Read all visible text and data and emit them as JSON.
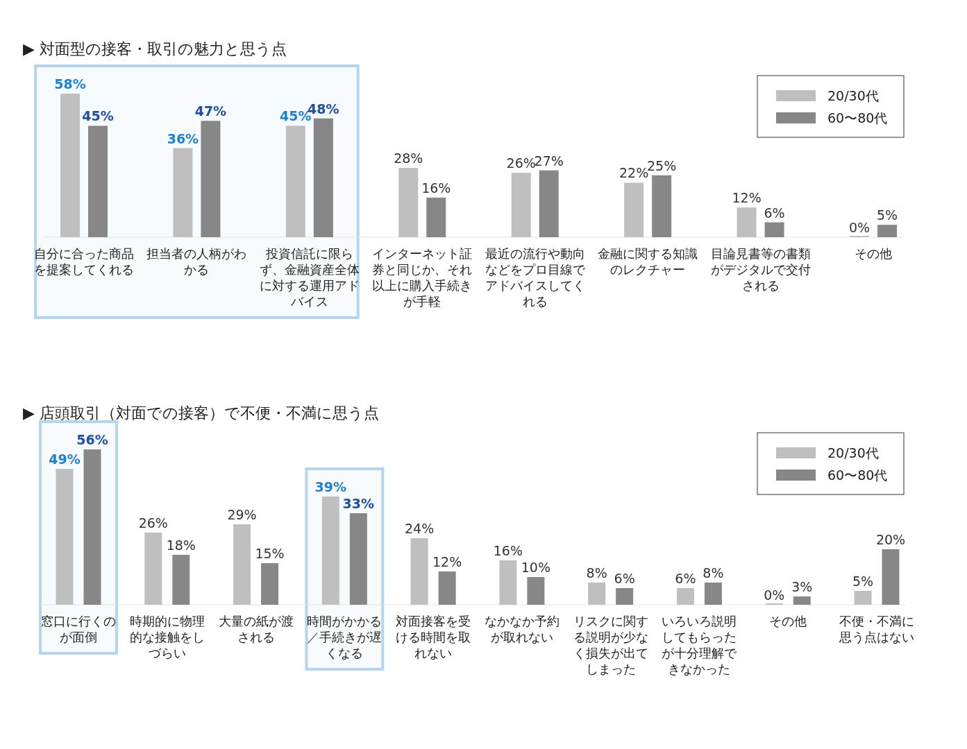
{
  "chart_data": [
    {
      "type": "bar",
      "title": "▶ 対面型の接客・取引の魅力と思う点",
      "categories": [
        "自分に合った商品を提案してくれる",
        "担当者の人柄がわかる",
        "投資信託に限らず、金融資産全体に対する運用アドバイス",
        "インターネット証券と同じか、それ以上に購入手続きが手軽",
        "最近の流行や動向などをプロ目線でアドバイスしてくれる",
        "金融に関する知識のレクチャー",
        "目論見書等の書類がデジタルで交付される",
        "その他"
      ],
      "series": [
        {
          "name": "20/30代",
          "color": "#bfbfbf",
          "values": [
            58,
            36,
            45,
            28,
            26,
            22,
            12,
            0
          ],
          "value_labels": [
            "58%",
            "36%",
            "45%",
            "28%",
            "26%",
            "22%",
            "12%",
            "0%"
          ]
        },
        {
          "name": "60〜80代",
          "color": "#878787",
          "values": [
            45,
            47,
            48,
            16,
            27,
            25,
            6,
            5
          ],
          "value_labels": [
            "45%",
            "47%",
            "48%",
            "16%",
            "27%",
            "25%",
            "6%",
            "5%"
          ]
        }
      ],
      "legend": "top right",
      "bands": [
        {
          "axis": "x",
          "from": "自分に合った商品を提案してくれる",
          "to": "投資信託に限らず、金融資産全体に対する運用アドバイス",
          "color": "#b5d5ee"
        }
      ]
    },
    {
      "type": "bar",
      "title": "▶ 店頭取引（対面での接客）で不便・不満に思う点",
      "categories": [
        "窓口に行くのが面倒",
        "時期的に物理的な接触をしづらい",
        "大量の紙が渡される",
        "時間がかかる／手続きが遅くなる",
        "対面接客を受ける時間を取れない",
        "なかなか予約が取れない",
        "リスクに関する説明が少なく損失が出てしまった",
        "いろいろ説明してもらったが十分理解できなかった",
        "その他",
        "不便・不満に思う点はない"
      ],
      "series": [
        {
          "name": "20/30代",
          "color": "#bfbfbf",
          "values": [
            49,
            26,
            29,
            39,
            24,
            16,
            8,
            6,
            0,
            5
          ],
          "value_labels": [
            "49%",
            "26%",
            "29%",
            "39%",
            "24%",
            "16%",
            "8%",
            "6%",
            "0%",
            "5%"
          ]
        },
        {
          "name": "60〜80代",
          "color": "#878787",
          "values": [
            56,
            18,
            15,
            33,
            12,
            10,
            6,
            8,
            3,
            20
          ],
          "value_labels": [
            "56%",
            "18%",
            "15%",
            "33%",
            "12%",
            "10%",
            "6%",
            "8%",
            "3%",
            "20%"
          ]
        }
      ],
      "legend": "top right",
      "bands": [
        {
          "axis": "x",
          "from": "窓口に行くのが面倒",
          "to": "窓口に行くのが面倒",
          "color": "#b5d5ee"
        },
        {
          "axis": "x",
          "from": "時間がかかる／手続きが遅くなる",
          "to": "時間がかかる／手続きが遅くなる",
          "color": "#b5d5ee"
        }
      ]
    }
  ]
}
